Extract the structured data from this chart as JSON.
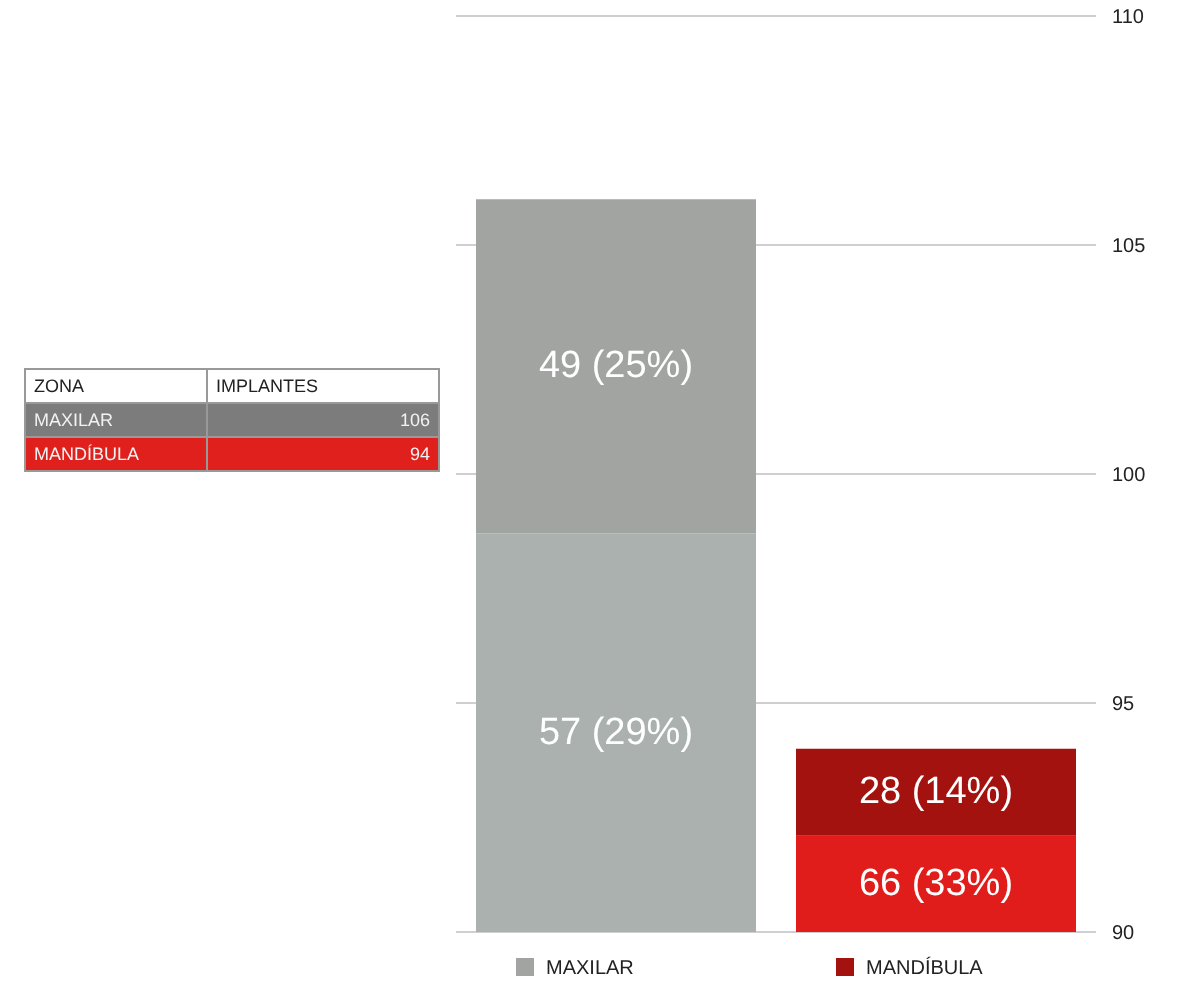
{
  "chart_data": {
    "type": "bar",
    "categories": [
      "MAXILAR",
      "MANDÍBULA"
    ],
    "series": [
      {
        "colors": [
          "#aab1af",
          "#e01d1a"
        ],
        "base": [
          90,
          90
        ],
        "values": [
          8.7,
          2.1
        ]
      },
      {
        "colors": [
          "#a2a4a1",
          "#a3120e"
        ],
        "base": [
          98.7,
          92.1
        ],
        "values": [
          7.3,
          1.9
        ]
      }
    ],
    "ylim": [
      90,
      110
    ],
    "yticks": [
      90,
      95,
      100,
      105,
      110
    ],
    "grid": "y",
    "annotations": [
      "ZONA",
      "IMPLANTES",
      "MAXILAR",
      "106",
      "MANDÍBULA",
      "94",
      "57 (29%)",
      "66 (33%)",
      "49 (25%)",
      "28 (14%)"
    ]
  }
}
